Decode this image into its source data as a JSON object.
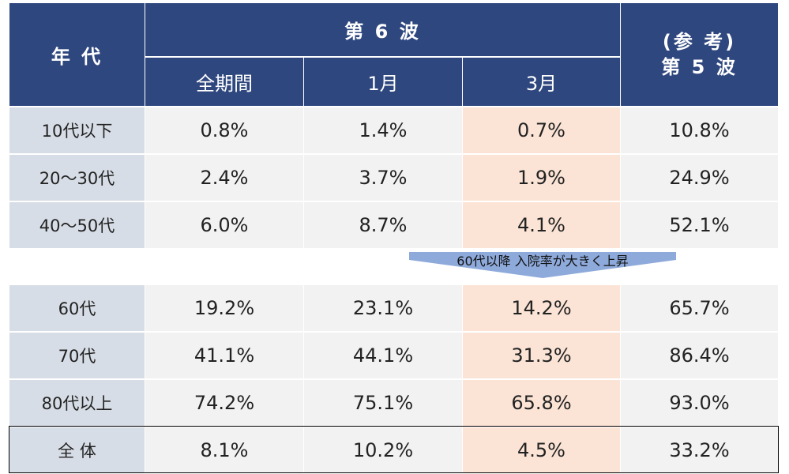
{
  "header": {
    "age": "年 代",
    "wave6": "第 6 波",
    "wave6_columns": [
      "全期間",
      "1月",
      "3月"
    ],
    "wave5": [
      "(参 考)",
      "第 5 波"
    ]
  },
  "rows": [
    {
      "label": "10代以下",
      "values": [
        "0.8%",
        "1.4%",
        "0.7%",
        "10.8%"
      ]
    },
    {
      "label": "20～30代",
      "values": [
        "2.4%",
        "3.7%",
        "1.9%",
        "24.9%"
      ]
    },
    {
      "label": "40～50代",
      "values": [
        "6.0%",
        "8.7%",
        "4.1%",
        "52.1%"
      ]
    },
    {
      "label": "60代",
      "values": [
        "19.2%",
        "23.1%",
        "14.2%",
        "65.7%"
      ]
    },
    {
      "label": "70代",
      "values": [
        "41.1%",
        "44.1%",
        "31.3%",
        "86.4%"
      ]
    },
    {
      "label": "80代以上",
      "values": [
        "74.2%",
        "75.1%",
        "65.8%",
        "93.0%"
      ]
    },
    {
      "label": "全 体",
      "values": [
        "8.1%",
        "10.2%",
        "4.5%",
        "33.2%"
      ]
    }
  ],
  "annotation": "60代以降 入院率が大きく上昇"
}
